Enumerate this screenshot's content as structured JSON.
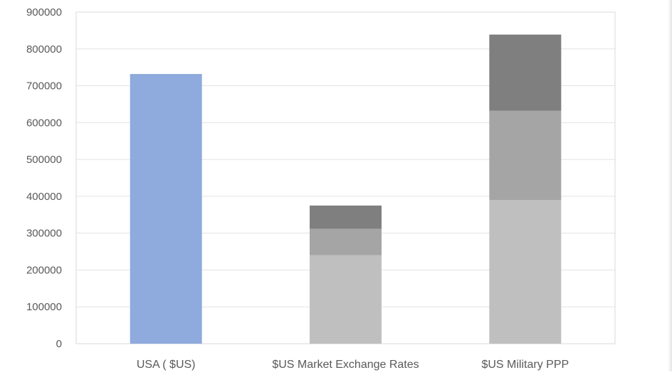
{
  "chart_data": {
    "type": "bar",
    "stacked": true,
    "categories": [
      "USA ( $US)",
      "$US Market Exchange Rates",
      "$US Military PPP"
    ],
    "series": [
      {
        "color": "#8faadc",
        "values": [
          732000,
          0,
          0
        ]
      },
      {
        "color": "#bfbfbf",
        "values": [
          0,
          240000,
          390000
        ]
      },
      {
        "color": "#a5a5a5",
        "values": [
          0,
          72000,
          242000
        ]
      },
      {
        "color": "#7f7f7f",
        "values": [
          0,
          63000,
          207000
        ]
      }
    ],
    "title": "",
    "xlabel": "",
    "ylabel": "",
    "ylim": [
      0,
      900000
    ],
    "yticks": [
      "0",
      "100000",
      "200000",
      "300000",
      "400000",
      "500000",
      "600000",
      "700000",
      "800000",
      "900000"
    ],
    "grid": true,
    "legend": "none"
  }
}
